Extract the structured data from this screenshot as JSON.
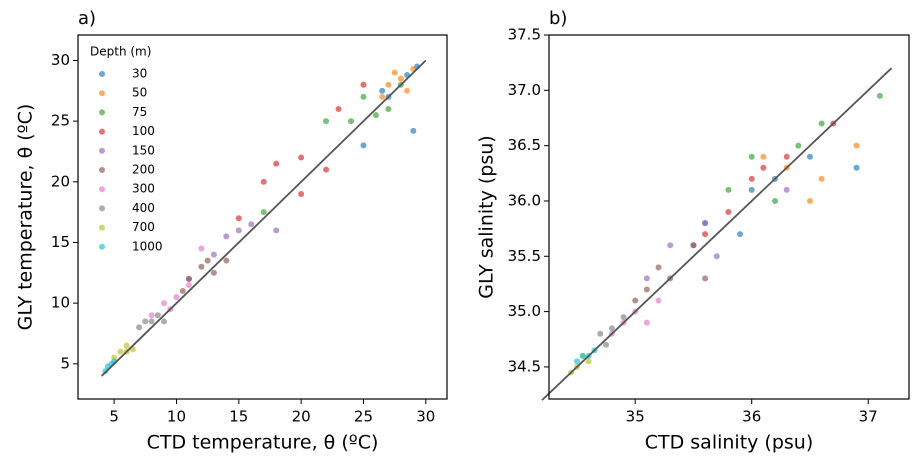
{
  "chart_data": [
    {
      "type": "scatter",
      "title": "a)",
      "x_label": "CTD temperature, θ (ºC)",
      "y_label": "GLY temperature, θ (ºC)",
      "xlim": [
        2.1,
        31.7
      ],
      "ylim": [
        2.1,
        32.1
      ],
      "xticks": [
        5,
        10,
        15,
        20,
        25,
        30
      ],
      "yticks": [
        5,
        10,
        15,
        20,
        25,
        30
      ],
      "identity_line": [
        4,
        30
      ],
      "legend_title": "Depth (m)",
      "series": [
        {
          "name": "30",
          "color": "#1f77b4",
          "x": [
            27,
            28.5,
            29,
            25,
            26.5,
            29.3
          ],
          "y": [
            27,
            28.8,
            24.2,
            23,
            27.5,
            29.5
          ]
        },
        {
          "name": "50",
          "color": "#ff7f0e",
          "x": [
            27,
            28,
            27.5,
            28.5,
            26.5,
            29
          ],
          "y": [
            28,
            28.5,
            29,
            27.5,
            27,
            29.3
          ]
        },
        {
          "name": "75",
          "color": "#2ca02c",
          "x": [
            25,
            26,
            27,
            24,
            17,
            22,
            28
          ],
          "y": [
            27,
            25.5,
            26,
            25,
            17.5,
            25,
            28
          ]
        },
        {
          "name": "100",
          "color": "#d62728",
          "x": [
            17,
            20,
            23,
            25,
            15,
            20,
            22,
            18
          ],
          "y": [
            20,
            22,
            26,
            28,
            17,
            19,
            21,
            21.5
          ]
        },
        {
          "name": "150",
          "color": "#9467bd",
          "x": [
            13,
            14,
            15,
            16,
            11,
            18
          ],
          "y": [
            14,
            15.5,
            16,
            16.5,
            12,
            16
          ]
        },
        {
          "name": "200",
          "color": "#8c564b",
          "x": [
            11,
            12,
            13,
            10.5,
            12.5,
            14
          ],
          "y": [
            12,
            13,
            12.5,
            11,
            13.5,
            13.5
          ]
        },
        {
          "name": "300",
          "color": "#e377c2",
          "x": [
            8,
            9,
            10,
            9.5,
            11,
            12
          ],
          "y": [
            9,
            10,
            10.5,
            9.5,
            11.5,
            14.5
          ]
        },
        {
          "name": "400",
          "color": "#7f7f7f",
          "x": [
            7.5,
            8,
            8.5,
            7,
            9
          ],
          "y": [
            8.5,
            8.5,
            9,
            8,
            8.5
          ]
        },
        {
          "name": "700",
          "color": "#bcbd22",
          "x": [
            5.5,
            6,
            6.5,
            5,
            6
          ],
          "y": [
            6,
            6.5,
            6.2,
            5.5,
            6
          ]
        },
        {
          "name": "1000",
          "color": "#17becf",
          "x": [
            4.3,
            4.5,
            4.8,
            5
          ],
          "y": [
            4.4,
            4.8,
            5,
            5.2
          ]
        }
      ]
    },
    {
      "type": "scatter",
      "title": "b)",
      "x_label": "CTD salinity (psu)",
      "y_label": "GLY salinity (psu)",
      "xlim": [
        34.26,
        37.35
      ],
      "ylim": [
        34.21,
        37.5
      ],
      "xticks": [
        35,
        36,
        37
      ],
      "yticks": [
        34.5,
        {
          "value": 35,
          "label": "35.0"
        },
        35.5,
        {
          "value": 36,
          "label": "36.0"
        },
        36.5,
        {
          "value": 37,
          "label": "37.0"
        },
        37.5
      ],
      "identity_line": [
        34.2,
        37.2
      ],
      "series": [
        {
          "color": "#1f77b4",
          "x": [
            36,
            36.2,
            35.6,
            36.9,
            35.9,
            36.5
          ],
          "y": [
            36.1,
            36.2,
            35.8,
            36.3,
            35.7,
            36.4
          ]
        },
        {
          "color": "#ff7f0e",
          "x": [
            36.9,
            36.3,
            36.5,
            36.6,
            36.1
          ],
          "y": [
            36.5,
            36.3,
            36,
            36.2,
            36.4
          ]
        },
        {
          "color": "#2ca02c",
          "x": [
            36.2,
            36,
            36.4,
            37.1,
            36.6,
            35.8
          ],
          "y": [
            36,
            36.4,
            36.5,
            36.95,
            36.7,
            36.1
          ]
        },
        {
          "color": "#d62728",
          "x": [
            35.8,
            36,
            36.3,
            35.6,
            36.1,
            36.7
          ],
          "y": [
            35.9,
            36.2,
            36.4,
            35.7,
            36.3,
            36.7
          ]
        },
        {
          "color": "#9467bd",
          "x": [
            35.3,
            35.5,
            35.7,
            36.3,
            35.1,
            35.6
          ],
          "y": [
            35.6,
            35.6,
            35.5,
            36.1,
            35.3,
            35.8
          ]
        },
        {
          "color": "#8c564b",
          "x": [
            35.1,
            35.3,
            35.5,
            35,
            35.6,
            35.2
          ],
          "y": [
            35.2,
            35.3,
            35.6,
            35.1,
            35.3,
            35.4
          ]
        },
        {
          "color": "#e377c2",
          "x": [
            34.9,
            35,
            35.1,
            34.8,
            35.2
          ],
          "y": [
            34.9,
            35,
            34.9,
            34.8,
            35.1
          ]
        },
        {
          "color": "#7f7f7f",
          "x": [
            34.7,
            34.8,
            34.9,
            34.75
          ],
          "y": [
            34.8,
            34.85,
            34.95,
            34.7
          ]
        },
        {
          "color": "#bcbd22",
          "x": [
            34.5,
            34.55,
            34.6,
            34.45
          ],
          "y": [
            34.5,
            34.6,
            34.55,
            34.45
          ]
        },
        {
          "color": "#17becf",
          "x": [
            34.6,
            34.5,
            34.65,
            34.55
          ],
          "y": [
            34.6,
            34.55,
            34.65,
            34.6
          ]
        }
      ]
    }
  ]
}
